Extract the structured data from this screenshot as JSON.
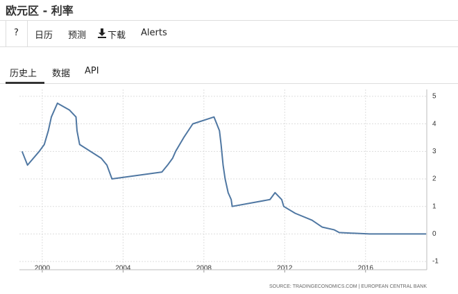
{
  "header": {
    "title": "欧元区 - 利率"
  },
  "toolbar": [
    "?",
    "日历",
    "预测",
    "下载",
    "Alerts"
  ],
  "tabs": [
    "历史上",
    "数据",
    "API"
  ],
  "chart_data": {
    "type": "line",
    "source": "SOURCE: TRADINGECONOMICS.COM  |  EUROPEAN CENTRAL BANK",
    "series": [
      {
        "name": "Interest Rate",
        "color": "#4f77a2",
        "x": [
          1999.0,
          1999.27,
          1999.85,
          2000.1,
          2000.2,
          2000.3,
          2000.45,
          2000.75,
          2001.35,
          2001.67,
          2001.72,
          2001.85,
          2002.92,
          2003.2,
          2003.45,
          2005.92,
          2006.2,
          2006.45,
          2006.6,
          2006.8,
          2007.0,
          2007.45,
          2008.5,
          2008.77,
          2008.85,
          2008.95,
          2009.05,
          2009.2,
          2009.35,
          2009.4,
          2011.27,
          2011.52,
          2011.85,
          2011.95,
          2012.52,
          2013.35,
          2013.85,
          2014.45,
          2014.7,
          2016.2,
          2019.0
        ],
        "values": [
          3.0,
          2.5,
          3.0,
          3.25,
          3.5,
          3.75,
          4.25,
          4.75,
          4.5,
          4.25,
          3.75,
          3.25,
          2.75,
          2.5,
          2.0,
          2.25,
          2.5,
          2.75,
          3.0,
          3.25,
          3.5,
          4.0,
          4.25,
          3.75,
          3.25,
          2.5,
          2.0,
          1.5,
          1.25,
          1.0,
          1.25,
          1.5,
          1.25,
          1.0,
          0.75,
          0.5,
          0.25,
          0.15,
          0.05,
          0.0,
          0.0
        ]
      }
    ],
    "xlim": [
      1998.87,
      2019.03
    ],
    "xticks": [
      2000,
      2004,
      2008,
      2012,
      2016
    ],
    "ylim": [
      -1.3,
      5.25
    ],
    "yticks": [
      -1,
      0,
      1,
      2,
      3,
      4,
      5
    ],
    "grid": true
  }
}
